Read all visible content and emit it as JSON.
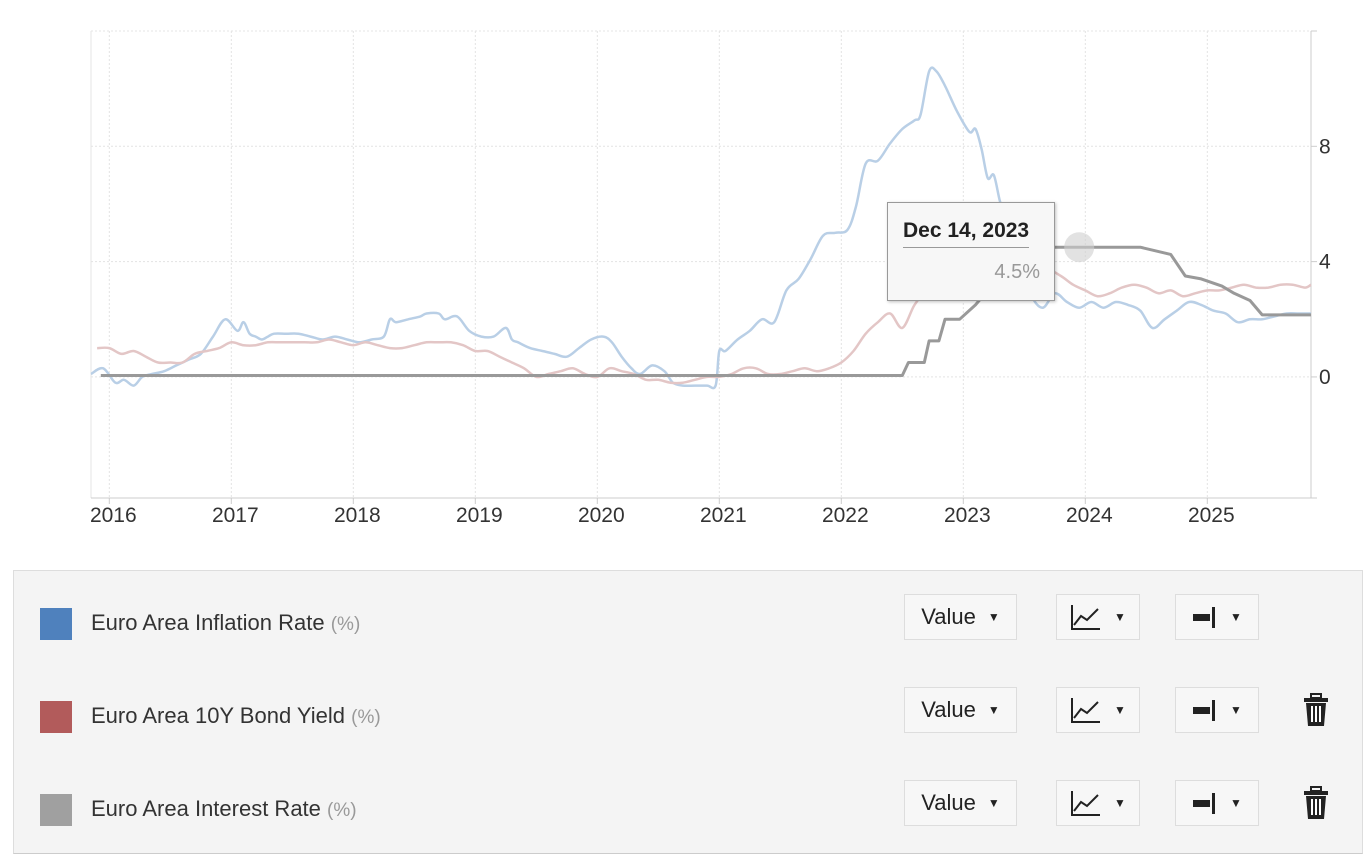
{
  "tooltip": {
    "date": "Dec 14, 2023",
    "value": "4.5%"
  },
  "legend": {
    "rows": [
      {
        "name": "Euro Area Inflation Rate",
        "unit": "(%)",
        "color": "#4f81bd",
        "value_label": "Value",
        "chart_icon": "line-chart-icon",
        "axis_icon": "axis-right-icon",
        "deletable": false
      },
      {
        "name": "Euro Area 10Y Bond Yield",
        "unit": "(%)",
        "color": "#b25b5b",
        "value_label": "Value",
        "chart_icon": "line-chart-icon",
        "axis_icon": "axis-right-icon",
        "deletable": true
      },
      {
        "name": "Euro Area Interest Rate",
        "unit": "(%)",
        "color": "#a0a0a0",
        "value_label": "Value",
        "chart_icon": "line-chart-icon",
        "axis_icon": "axis-right-icon",
        "deletable": true
      }
    ]
  },
  "chart_data": {
    "type": "line",
    "x_ticks": [
      "2016",
      "2017",
      "2018",
      "2019",
      "2020",
      "2021",
      "2022",
      "2023",
      "2024",
      "2025"
    ],
    "y_ticks": [
      0,
      4,
      8
    ],
    "xlim": [
      2015.85,
      2025.85
    ],
    "ylim": [
      -4.2,
      12
    ],
    "grid": true,
    "series": [
      {
        "name": "Euro Area Inflation Rate",
        "unit": "(%)",
        "color": "#b9cfe6",
        "step": false,
        "x": [
          2015.85,
          2015.95,
          2016.05,
          2016.12,
          2016.2,
          2016.27,
          2016.35,
          2016.45,
          2016.55,
          2016.65,
          2016.75,
          2016.85,
          2016.95,
          2017.05,
          2017.1,
          2017.15,
          2017.2,
          2017.25,
          2017.3,
          2017.35,
          2017.45,
          2017.55,
          2017.65,
          2017.75,
          2017.85,
          2017.95,
          2018.05,
          2018.15,
          2018.25,
          2018.3,
          2018.35,
          2018.45,
          2018.55,
          2018.6,
          2018.7,
          2018.75,
          2018.85,
          2018.95,
          2019.05,
          2019.15,
          2019.25,
          2019.3,
          2019.35,
          2019.45,
          2019.55,
          2019.65,
          2019.75,
          2019.85,
          2019.95,
          2020.05,
          2020.12,
          2020.2,
          2020.28,
          2020.35,
          2020.45,
          2020.55,
          2020.62,
          2020.7,
          2020.8,
          2020.9,
          2020.97,
          2021.0,
          2021.05,
          2021.15,
          2021.25,
          2021.35,
          2021.45,
          2021.55,
          2021.65,
          2021.75,
          2021.85,
          2021.95,
          2022.05,
          2022.12,
          2022.2,
          2022.3,
          2022.4,
          2022.5,
          2022.6,
          2022.65,
          2022.72,
          2022.78,
          2022.85,
          2022.95,
          2023.05,
          2023.1,
          2023.15,
          2023.2,
          2023.25,
          2023.3,
          2023.35,
          2023.45,
          2023.55,
          2023.65,
          2023.75,
          2023.85,
          2023.95,
          2024.05,
          2024.15,
          2024.25,
          2024.35,
          2024.45,
          2024.55,
          2024.65,
          2024.75,
          2024.85,
          2024.95,
          2025.05,
          2025.15,
          2025.25,
          2025.35,
          2025.45,
          2025.55,
          2025.65,
          2025.75,
          2025.85
        ],
        "y": [
          0.1,
          0.3,
          -0.2,
          -0.1,
          -0.3,
          0.0,
          0.1,
          0.2,
          0.4,
          0.6,
          0.8,
          1.4,
          2.0,
          1.6,
          1.9,
          1.5,
          1.4,
          1.3,
          1.4,
          1.5,
          1.5,
          1.5,
          1.4,
          1.3,
          1.4,
          1.3,
          1.2,
          1.3,
          1.4,
          2.0,
          1.9,
          2.0,
          2.1,
          2.2,
          2.2,
          2.0,
          2.1,
          1.6,
          1.4,
          1.4,
          1.7,
          1.3,
          1.2,
          1.0,
          0.9,
          0.8,
          0.7,
          1.0,
          1.3,
          1.4,
          1.2,
          0.7,
          0.3,
          0.1,
          0.4,
          0.2,
          -0.2,
          -0.3,
          -0.3,
          -0.3,
          -0.3,
          0.9,
          0.9,
          1.3,
          1.6,
          2.0,
          1.9,
          3.0,
          3.4,
          4.1,
          4.9,
          5.0,
          5.1,
          5.9,
          7.4,
          7.5,
          8.1,
          8.6,
          8.9,
          9.1,
          10.6,
          10.6,
          10.1,
          9.2,
          8.5,
          8.6,
          7.9,
          6.9,
          7.0,
          6.1,
          5.5,
          4.3,
          2.9,
          2.4,
          2.9,
          2.6,
          2.4,
          2.6,
          2.4,
          2.6,
          2.5,
          2.3,
          1.7,
          2.0,
          2.3,
          2.6,
          2.5,
          2.3,
          2.2,
          1.9,
          2.0,
          2.0,
          2.1,
          2.2,
          2.2,
          2.2
        ]
      },
      {
        "name": "Euro Area 10Y Bond Yield",
        "unit": "(%)",
        "color": "#e3c6c6",
        "step": false,
        "x": [
          2015.9,
          2016.0,
          2016.1,
          2016.2,
          2016.3,
          2016.4,
          2016.5,
          2016.6,
          2016.7,
          2016.8,
          2016.9,
          2017.0,
          2017.1,
          2017.2,
          2017.3,
          2017.4,
          2017.5,
          2017.6,
          2017.7,
          2017.8,
          2017.9,
          2018.0,
          2018.1,
          2018.2,
          2018.3,
          2018.4,
          2018.5,
          2018.6,
          2018.7,
          2018.8,
          2018.9,
          2019.0,
          2019.1,
          2019.2,
          2019.3,
          2019.4,
          2019.5,
          2019.6,
          2019.7,
          2019.8,
          2019.9,
          2020.0,
          2020.1,
          2020.2,
          2020.3,
          2020.4,
          2020.5,
          2020.6,
          2020.7,
          2020.8,
          2020.9,
          2021.0,
          2021.1,
          2021.2,
          2021.3,
          2021.4,
          2021.5,
          2021.6,
          2021.7,
          2021.8,
          2021.9,
          2022.0,
          2022.1,
          2022.2,
          2022.3,
          2022.4,
          2022.5,
          2022.6,
          2022.7,
          2022.8,
          2022.9,
          2023.0,
          2023.1,
          2023.2,
          2023.3,
          2023.4,
          2023.5,
          2023.6,
          2023.7,
          2023.8,
          2023.9,
          2024.0,
          2024.1,
          2024.2,
          2024.3,
          2024.4,
          2024.5,
          2024.6,
          2024.7,
          2024.8,
          2024.9,
          2025.0,
          2025.1,
          2025.2,
          2025.3,
          2025.4,
          2025.5,
          2025.6,
          2025.7,
          2025.8,
          2025.85
        ],
        "y": [
          1.0,
          1.0,
          0.8,
          0.9,
          0.7,
          0.5,
          0.5,
          0.5,
          0.8,
          0.9,
          1.0,
          1.2,
          1.1,
          1.1,
          1.2,
          1.2,
          1.2,
          1.2,
          1.2,
          1.3,
          1.2,
          1.1,
          1.2,
          1.1,
          1.0,
          1.0,
          1.1,
          1.2,
          1.2,
          1.2,
          1.1,
          0.9,
          0.9,
          0.7,
          0.5,
          0.3,
          0.0,
          0.1,
          0.2,
          0.3,
          0.1,
          0.0,
          0.3,
          0.2,
          0.1,
          -0.1,
          -0.1,
          -0.2,
          -0.2,
          -0.1,
          0.0,
          0.0,
          0.1,
          0.3,
          0.3,
          0.1,
          0.1,
          0.2,
          0.3,
          0.2,
          0.3,
          0.5,
          0.9,
          1.5,
          1.9,
          2.2,
          1.7,
          2.5,
          3.0,
          3.2,
          3.0,
          3.1,
          3.0,
          3.1,
          3.0,
          3.2,
          3.4,
          3.5,
          3.7,
          3.5,
          3.2,
          3.0,
          2.8,
          2.9,
          3.1,
          3.2,
          3.1,
          2.9,
          3.0,
          2.8,
          2.9,
          3.0,
          3.0,
          3.1,
          3.2,
          3.1,
          3.1,
          3.2,
          3.2,
          3.1,
          3.2
        ]
      },
      {
        "name": "Euro Area Interest Rate",
        "unit": "(%)",
        "color": "#999999",
        "step": true,
        "x": [
          2015.93,
          2016.0,
          2022.5,
          2022.55,
          2022.68,
          2022.72,
          2022.8,
          2022.85,
          2022.97,
          2023.1,
          2023.2,
          2023.35,
          2023.5,
          2023.6,
          2023.7,
          2023.92,
          2024.45,
          2024.7,
          2024.82,
          2024.95,
          2025.12,
          2025.22,
          2025.35,
          2025.45,
          2025.85
        ],
        "y": [
          0.05,
          0.05,
          0.05,
          0.5,
          0.5,
          1.25,
          1.25,
          2.0,
          2.0,
          2.5,
          3.0,
          3.5,
          3.75,
          4.0,
          4.5,
          4.5,
          4.5,
          4.25,
          3.5,
          3.4,
          3.15,
          2.9,
          2.65,
          2.15,
          2.15
        ]
      }
    ]
  }
}
